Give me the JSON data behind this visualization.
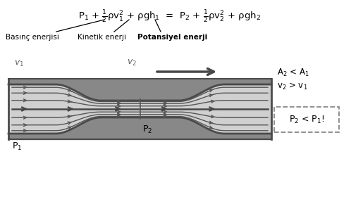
{
  "bg_color": "#ffffff",
  "tube_fill_color": "#d0d0d0",
  "tube_wall_dark": "#4a4a4a",
  "tube_wall_inner": "#6a6a6a",
  "tube_outer_fill": "#888888",
  "arrow_color": "#505050",
  "arrow_big_color": "#484848",
  "label_v1": "v$_1$",
  "label_v2": "v$_2$",
  "label_P1": "P$_1$",
  "label_P2": "P$_2$",
  "right_A": "A$_2$ < A$_1$",
  "right_v": "v$_2$ > v$_1$",
  "right_P": "P$_2$ < P$_1$!",
  "label_basinc": "Basınç enerjisi",
  "label_kinetik": "Kinetik enerji",
  "label_potansiyel": "Potansiyel enerji"
}
